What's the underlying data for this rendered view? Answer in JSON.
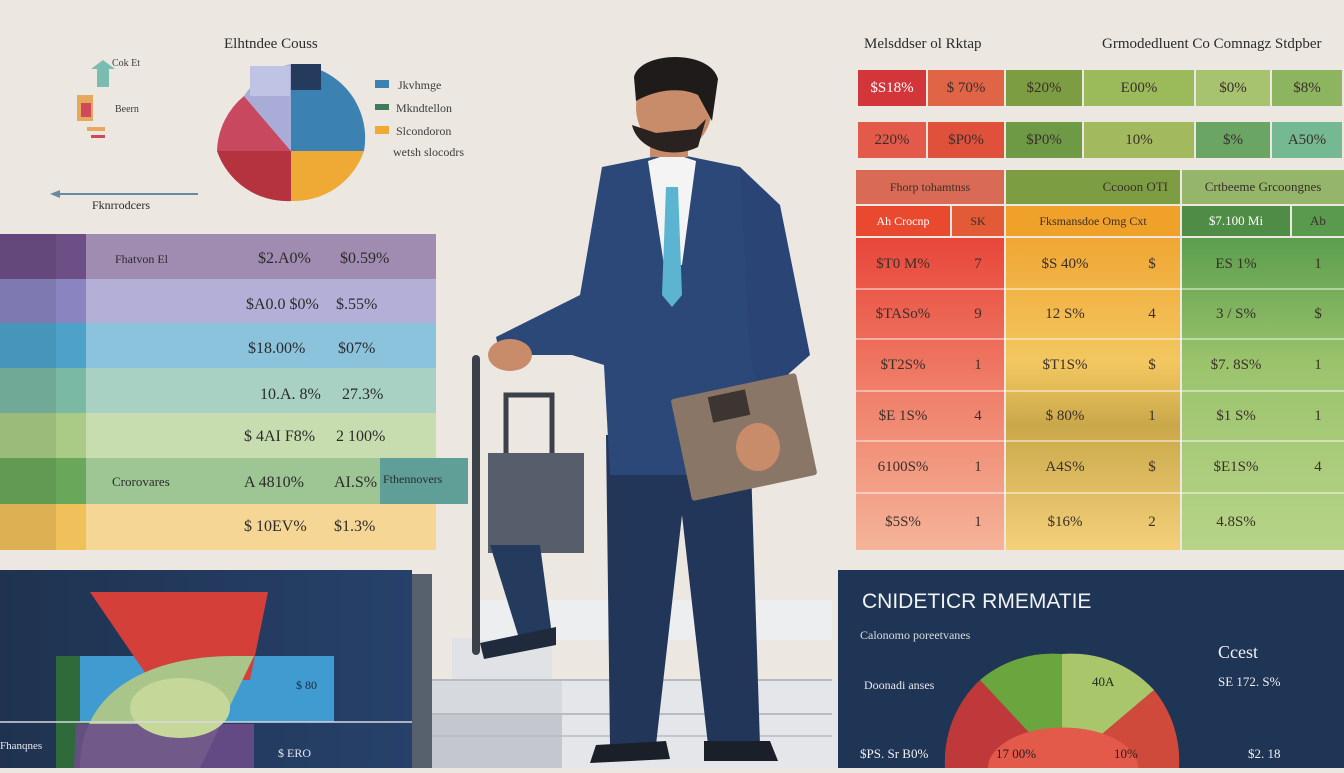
{
  "top_left": {
    "title": "Elhtndee Couss",
    "mini_labels": [
      "Cok Et",
      "Beern"
    ],
    "arrow_label": "Fknrrodcers",
    "pie_legend": [
      "Jkvhmge",
      "Mkndtellon",
      "Slcondoron",
      "wetsh slocodrs"
    ],
    "colors": {
      "red": "#b5333f",
      "blue": "#3b82b3",
      "orange": "#efaa36",
      "navy": "#253b5d",
      "lavender": "#a8acd6",
      "pink": "#d0566c"
    }
  },
  "left_table": {
    "rows": [
      {
        "label": "Fhatvon El",
        "v1": "$2.A0%",
        "v2": "$0.59%",
        "color": "#6d4f86"
      },
      {
        "label": "",
        "v1": "$A0.0 $0%",
        "v2": "$.55%",
        "color": "#8a84c0"
      },
      {
        "label": "",
        "v1": "$18.00%",
        "v2": "$07%",
        "color": "#4ea2c9"
      },
      {
        "label": "",
        "v1": "10.A. 8%",
        "v2": "27.3%",
        "color": "#7ab9a3"
      },
      {
        "label": "",
        "v1": "$ 4AI F8%",
        "v2": "2 100%",
        "color": "#a9cb86"
      },
      {
        "label": "Crorovares",
        "v1": "A 4810%",
        "v2": "AI.S%",
        "color": "#69a85b"
      },
      {
        "label": "",
        "v1": "$ 10EV%",
        "v2": "$1.3%",
        "color": "#f0c15b"
      }
    ],
    "overlay_label": "Fthennovers"
  },
  "top_right": {
    "title_left": "Melsddser ol Rktap",
    "title_right": "Grmodedluent Co Comnagz Stdpber",
    "row1": [
      "$S18%",
      "$ 70%",
      "$20%",
      "E00%",
      "$0%",
      "$8%"
    ],
    "row2": [
      "220%",
      "$P0%",
      "$P0%",
      "10%",
      "$%",
      "A50%"
    ]
  },
  "grid": {
    "headers": [
      "Fhorp tohamtnss",
      "Ccooon OTI",
      "Crtbeeme Grcoongnes"
    ],
    "subheaders": [
      "Ah Crocnp",
      "SK",
      "Fksmansdoe Omg Cxt",
      "",
      "$7.100 Mi",
      "Ab"
    ],
    "rows": [
      [
        "$T0 M%",
        "7",
        "$S 40%",
        "$",
        "ES 1%",
        "1"
      ],
      [
        "$TASo%",
        "9",
        "12 S%",
        "4",
        "3 / S%",
        "$"
      ],
      [
        "$T2S%",
        "1",
        "$T1S%",
        "$",
        "$7. 8S%",
        "1"
      ],
      [
        "$E 1S%",
        "4",
        "$ 80%",
        "1",
        "$1 S%",
        "1"
      ],
      [
        "6100S%",
        "1",
        "A4S%",
        "$",
        "$E1S%",
        "4"
      ],
      [
        "$5S%",
        "1",
        "$16%",
        "2",
        "4.8S%",
        ""
      ]
    ]
  },
  "bottom_right": {
    "title": "CNIDETICR RMEMATIE",
    "subtitle": "Calonomo poreetvanes",
    "cost_label": "Ccest",
    "side_label": "Doonadi anses",
    "values": [
      "40A",
      "SE 172. S%",
      "$PS. Sr B0%",
      "17 00%",
      "10%",
      "$2. 18"
    ]
  },
  "bottom_left": {
    "labels": [
      "Fhanqnes",
      "$ 80",
      "$ ERO"
    ]
  }
}
